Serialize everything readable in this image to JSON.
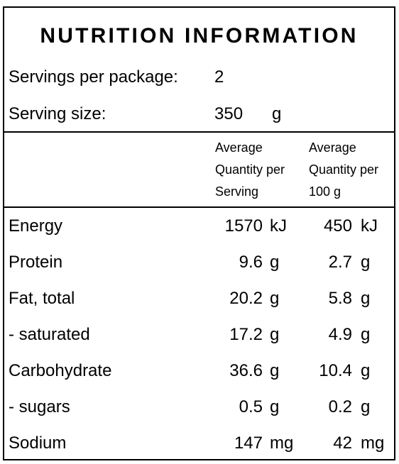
{
  "title": "NUTRITION INFORMATION",
  "servings": {
    "label": "Servings per package:",
    "value": "2"
  },
  "serving_size": {
    "label": "Serving size:",
    "value": "350",
    "unit": "g"
  },
  "columns": {
    "per_serving": [
      "Average",
      "Quantity per",
      "Serving"
    ],
    "per_100g": [
      "Average",
      "Quantity per",
      "100 g"
    ]
  },
  "rows": [
    {
      "name": "Energy",
      "serving": "1570",
      "serving_unit": "kJ",
      "per100": "450",
      "per100_unit": "kJ"
    },
    {
      "name": "Protein",
      "serving": "9.6",
      "serving_unit": "g",
      "per100": "2.7",
      "per100_unit": "g"
    },
    {
      "name": "Fat, total",
      "serving": "20.2",
      "serving_unit": "g",
      "per100": "5.8",
      "per100_unit": "g"
    },
    {
      "name": "- saturated",
      "serving": "17.2",
      "serving_unit": "g",
      "per100": "4.9",
      "per100_unit": "g"
    },
    {
      "name": "Carbohydrate",
      "serving": "36.6",
      "serving_unit": "g",
      "per100": "10.4",
      "per100_unit": "g"
    },
    {
      "name": "- sugars",
      "serving": "0.5",
      "serving_unit": "g",
      "per100": "0.2",
      "per100_unit": "g"
    },
    {
      "name": "Sodium",
      "serving": "147",
      "serving_unit": "mg",
      "per100": "42",
      "per100_unit": "mg"
    }
  ]
}
